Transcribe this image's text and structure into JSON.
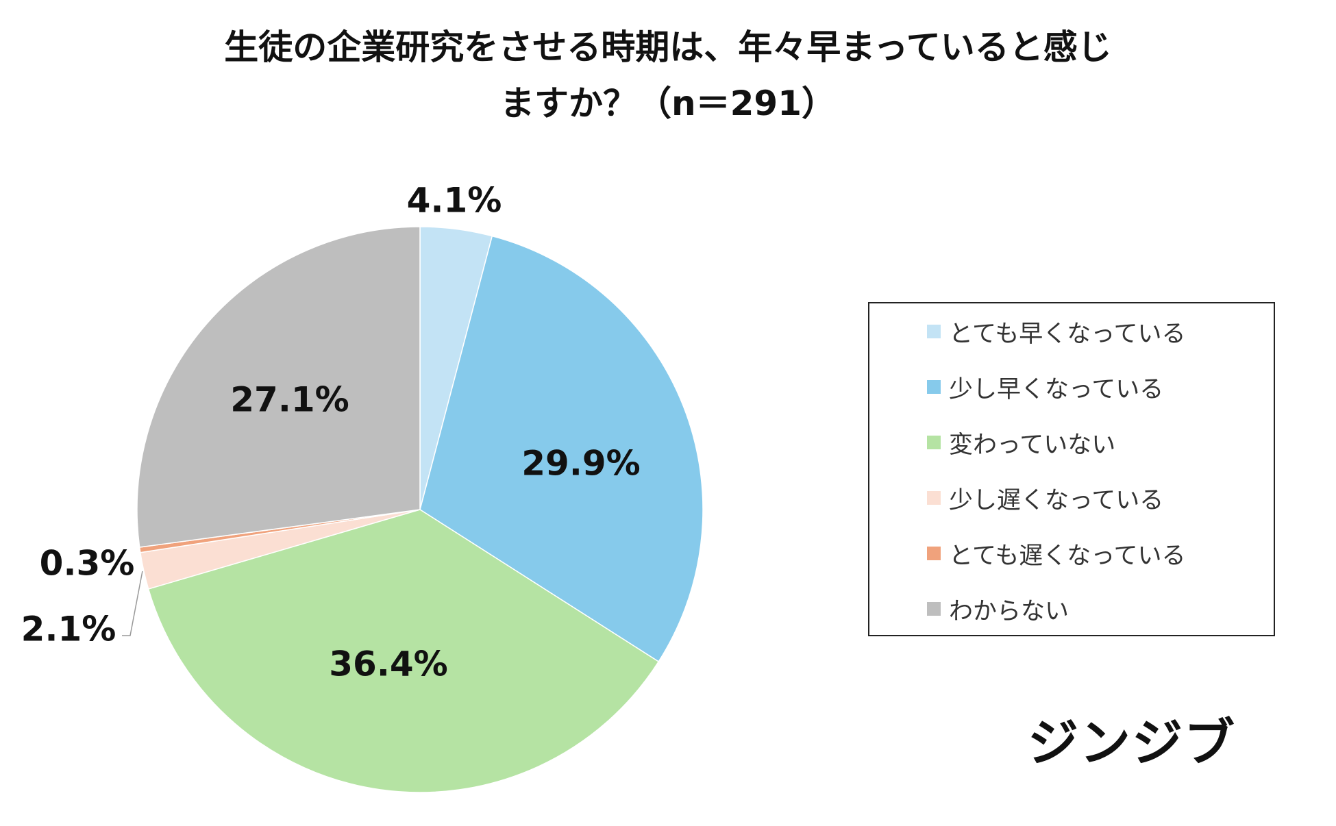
{
  "chart_data": {
    "type": "pie",
    "title": "生徒の企業研究をさせる時期は、年々早まっていると感じますか？（n＝291）",
    "title_lines": [
      "生徒の企業研究をさせる時期は、年々早まっていると感じ",
      "ますか？（n＝291）"
    ],
    "categories": [
      "とても早くなっている",
      "少し早くなっている",
      "変わっていない",
      "少し遅くなっている",
      "とても遅くなっている",
      "わからない"
    ],
    "values": [
      4.1,
      29.9,
      36.4,
      2.1,
      0.3,
      27.1
    ],
    "value_labels": [
      "4.1%",
      "29.9%",
      "36.4%",
      "2.1%",
      "0.3%",
      "27.1%"
    ],
    "colors": [
      "#c3e3f5",
      "#86caeb",
      "#b5e3a3",
      "#fbdfd3",
      "#f0a27c",
      "#bebebe"
    ],
    "start": "12 o'clock",
    "direction": "clockwise",
    "legend_position": "right"
  },
  "brand": {
    "logo_text": "ジンジブ"
  }
}
